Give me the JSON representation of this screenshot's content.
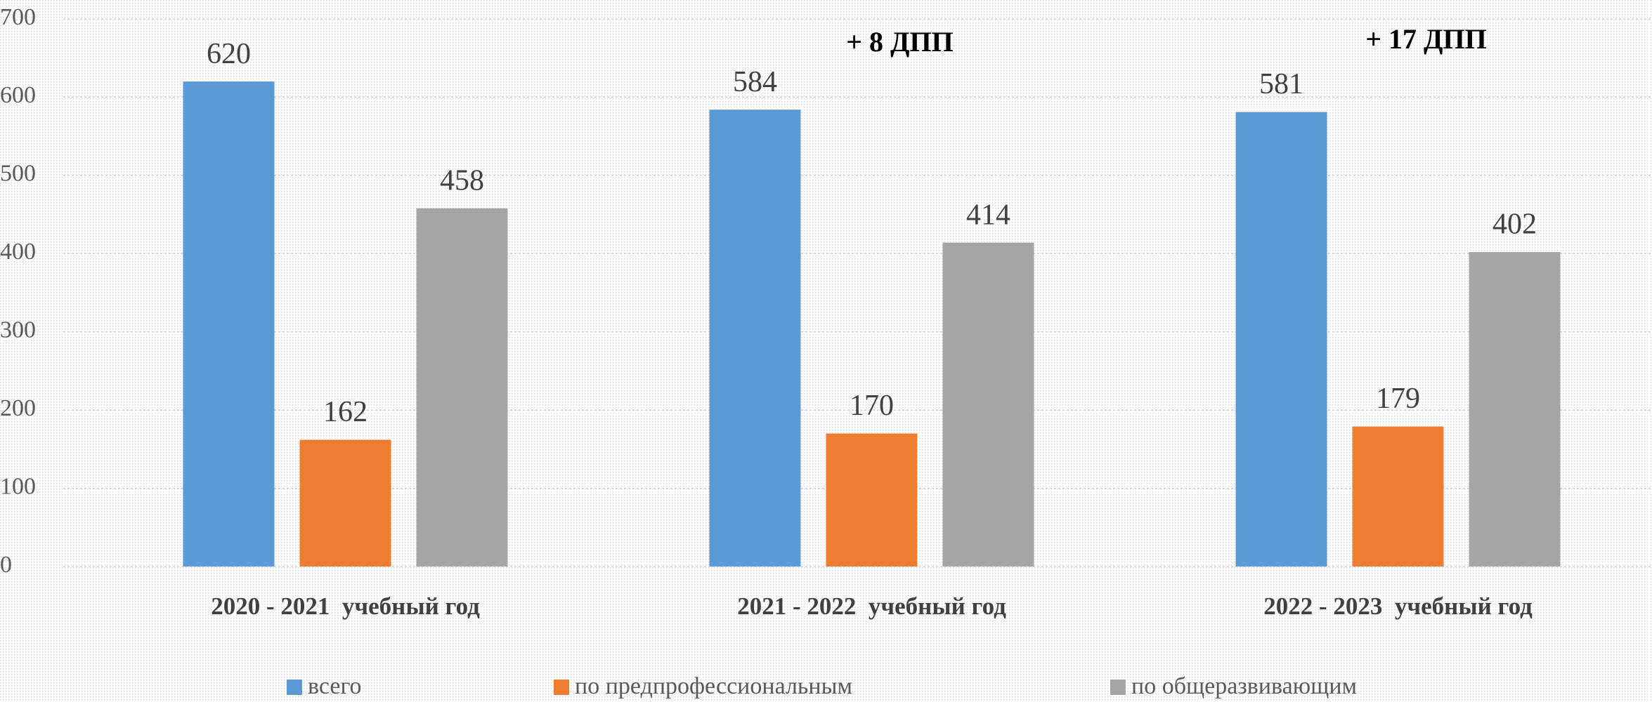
{
  "chart_data": {
    "type": "bar",
    "categories": [
      "2020 - 2021  учебный год",
      "2021 - 2022  учебный год",
      "2022 - 2023  учебный год"
    ],
    "series": [
      {
        "name": "всего",
        "color": "#5b9bd5",
        "values": [
          620,
          584,
          581
        ]
      },
      {
        "name": "по предпрофессиональным",
        "color": "#ed7d31",
        "values": [
          162,
          170,
          179
        ]
      },
      {
        "name": "по общеразвивающим",
        "color": "#a5a5a5",
        "values": [
          458,
          414,
          402
        ]
      }
    ],
    "annotations": [
      "+ 8 ДПП",
      "+ 17 ДПП"
    ],
    "ylim": [
      0,
      700
    ],
    "yticks": [
      0,
      100,
      200,
      300,
      400,
      500,
      600,
      700
    ],
    "grid": true
  }
}
